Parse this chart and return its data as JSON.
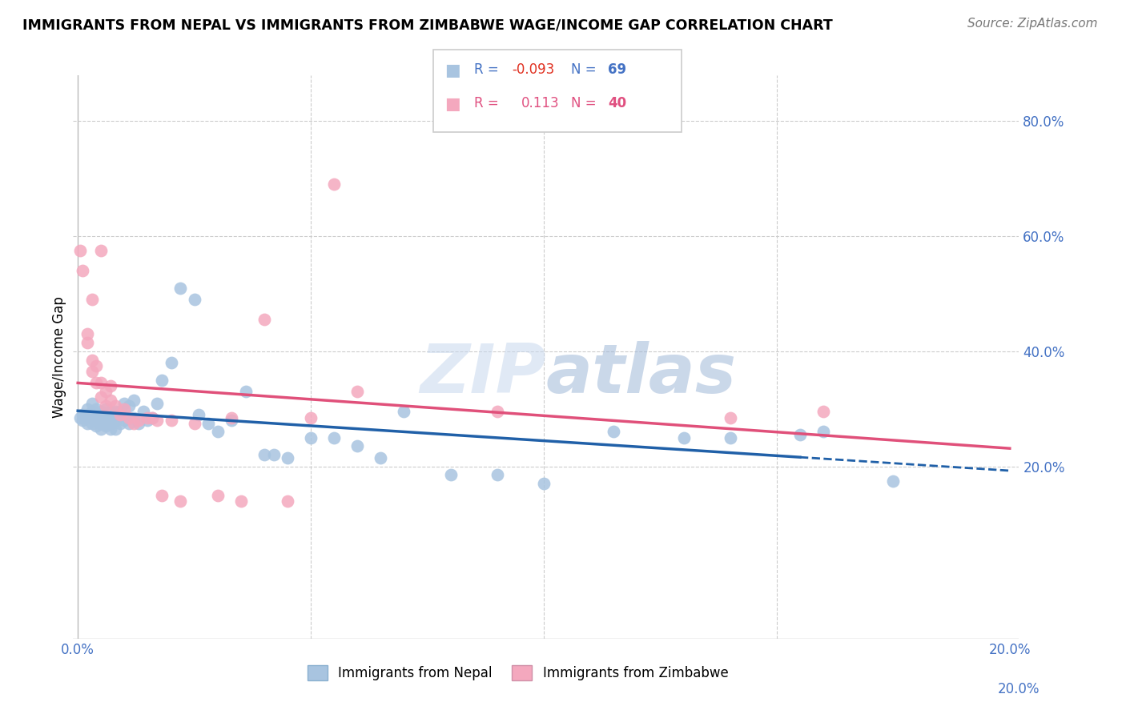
{
  "title": "IMMIGRANTS FROM NEPAL VS IMMIGRANTS FROM ZIMBABWE WAGE/INCOME GAP CORRELATION CHART",
  "source": "Source: ZipAtlas.com",
  "ylabel": "Wage/Income Gap",
  "watermark": "ZIPatlas",
  "nepal_R": -0.093,
  "nepal_N": 69,
  "zimbabwe_R": 0.113,
  "zimbabwe_N": 40,
  "nepal_color": "#a8c4e0",
  "zimbabwe_color": "#f4a8be",
  "nepal_line_color": "#2060a8",
  "zimbabwe_line_color": "#e0507a",
  "nepal_label": "Immigrants from Nepal",
  "zimbabwe_label": "Immigrants from Zimbabwe",
  "xlim": [
    -0.001,
    0.202
  ],
  "ylim": [
    -0.1,
    0.88
  ],
  "right_yticks": [
    0.8,
    0.6,
    0.4,
    0.2
  ],
  "nepal_scatter_x": [
    0.0005,
    0.001,
    0.001,
    0.0015,
    0.002,
    0.002,
    0.002,
    0.003,
    0.003,
    0.003,
    0.003,
    0.004,
    0.004,
    0.004,
    0.004,
    0.005,
    0.005,
    0.005,
    0.005,
    0.006,
    0.006,
    0.006,
    0.006,
    0.007,
    0.007,
    0.007,
    0.007,
    0.008,
    0.008,
    0.008,
    0.009,
    0.009,
    0.01,
    0.01,
    0.011,
    0.011,
    0.012,
    0.012,
    0.013,
    0.014,
    0.015,
    0.016,
    0.017,
    0.018,
    0.02,
    0.022,
    0.025,
    0.026,
    0.028,
    0.03,
    0.033,
    0.036,
    0.04,
    0.042,
    0.045,
    0.05,
    0.055,
    0.06,
    0.065,
    0.07,
    0.08,
    0.09,
    0.1,
    0.115,
    0.13,
    0.14,
    0.155,
    0.16,
    0.175
  ],
  "nepal_scatter_y": [
    0.285,
    0.28,
    0.29,
    0.285,
    0.275,
    0.29,
    0.3,
    0.275,
    0.285,
    0.295,
    0.31,
    0.27,
    0.28,
    0.29,
    0.3,
    0.265,
    0.275,
    0.285,
    0.295,
    0.27,
    0.28,
    0.29,
    0.3,
    0.265,
    0.275,
    0.28,
    0.295,
    0.265,
    0.28,
    0.295,
    0.275,
    0.295,
    0.28,
    0.31,
    0.275,
    0.305,
    0.285,
    0.315,
    0.275,
    0.295,
    0.28,
    0.285,
    0.31,
    0.35,
    0.38,
    0.51,
    0.49,
    0.29,
    0.275,
    0.26,
    0.28,
    0.33,
    0.22,
    0.22,
    0.215,
    0.25,
    0.25,
    0.235,
    0.215,
    0.295,
    0.185,
    0.185,
    0.17,
    0.26,
    0.25,
    0.25,
    0.255,
    0.26,
    0.175
  ],
  "zimbabwe_scatter_x": [
    0.0005,
    0.001,
    0.002,
    0.002,
    0.003,
    0.003,
    0.003,
    0.004,
    0.004,
    0.005,
    0.005,
    0.005,
    0.006,
    0.006,
    0.007,
    0.007,
    0.008,
    0.009,
    0.01,
    0.011,
    0.012,
    0.013,
    0.015,
    0.016,
    0.017,
    0.018,
    0.02,
    0.022,
    0.025,
    0.03,
    0.033,
    0.035,
    0.04,
    0.045,
    0.05,
    0.055,
    0.06,
    0.09,
    0.14,
    0.16
  ],
  "zimbabwe_scatter_y": [
    0.575,
    0.54,
    0.415,
    0.43,
    0.365,
    0.385,
    0.49,
    0.345,
    0.375,
    0.32,
    0.345,
    0.575,
    0.305,
    0.33,
    0.315,
    0.34,
    0.305,
    0.29,
    0.3,
    0.285,
    0.275,
    0.28,
    0.285,
    0.285,
    0.28,
    0.15,
    0.28,
    0.14,
    0.275,
    0.15,
    0.285,
    0.14,
    0.455,
    0.14,
    0.285,
    0.69,
    0.33,
    0.295,
    0.285,
    0.295
  ]
}
